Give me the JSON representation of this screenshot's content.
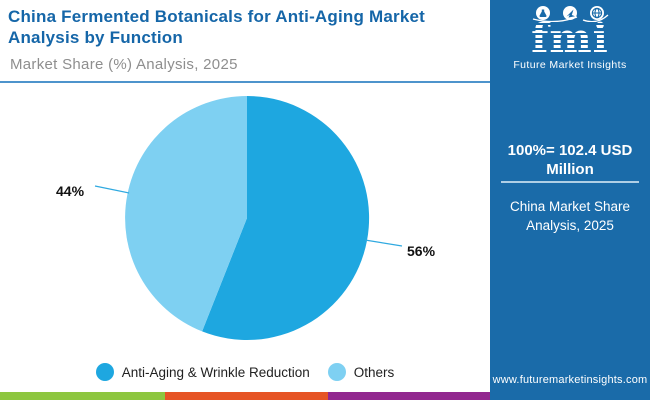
{
  "header": {
    "title": "China Fermented Botanicals for Anti-Aging Market Analysis by Function",
    "subtitle": "Market Share (%) Analysis, 2025"
  },
  "chart_data": {
    "type": "pie",
    "title": "China Fermented Botanicals for Anti-Aging Market Analysis by Function",
    "subtitle": "Market Share (%) Analysis, 2025",
    "unit": "%",
    "year": "2025",
    "total_note": "100%= 102.4 USD Million",
    "legend_position": "bottom",
    "start_angle": "top, clockwise",
    "categories": [
      "Anti-Aging & Wrinkle Reduction",
      "Others"
    ],
    "values": [
      56,
      44
    ],
    "slices": [
      {
        "label": "Anti-Aging & Wrinkle Reduction",
        "value": 56,
        "display": "56%",
        "color": "#1EA7E0"
      },
      {
        "label": "Others",
        "value": 44,
        "display": "44%",
        "color": "#7ED0F2"
      }
    ]
  },
  "sidebar": {
    "logo_text": "fmi",
    "logo_subtitle": "Future Market Insights",
    "logo_icons": [
      "flask-icon",
      "rocket-icon",
      "globe-icon"
    ],
    "stat": "100%=  102.4 USD\nMillion",
    "caption": "China Market Share\nAnalysis, 2025",
    "website": "www.futuremarketinsights.com"
  },
  "colors": {
    "sidebar_bg": "#1A6BA9",
    "title_blue": "#1566A8",
    "subtitle_gray": "#8E8E8E",
    "header_divider": "#4E94CC",
    "slice_dark": "#1EA7E0",
    "slice_light": "#7ED0F2",
    "leader_line": "#2FA9E0",
    "bar_green": "#8DC63F",
    "bar_orange": "#E65425",
    "bar_purple": "#92278F"
  }
}
